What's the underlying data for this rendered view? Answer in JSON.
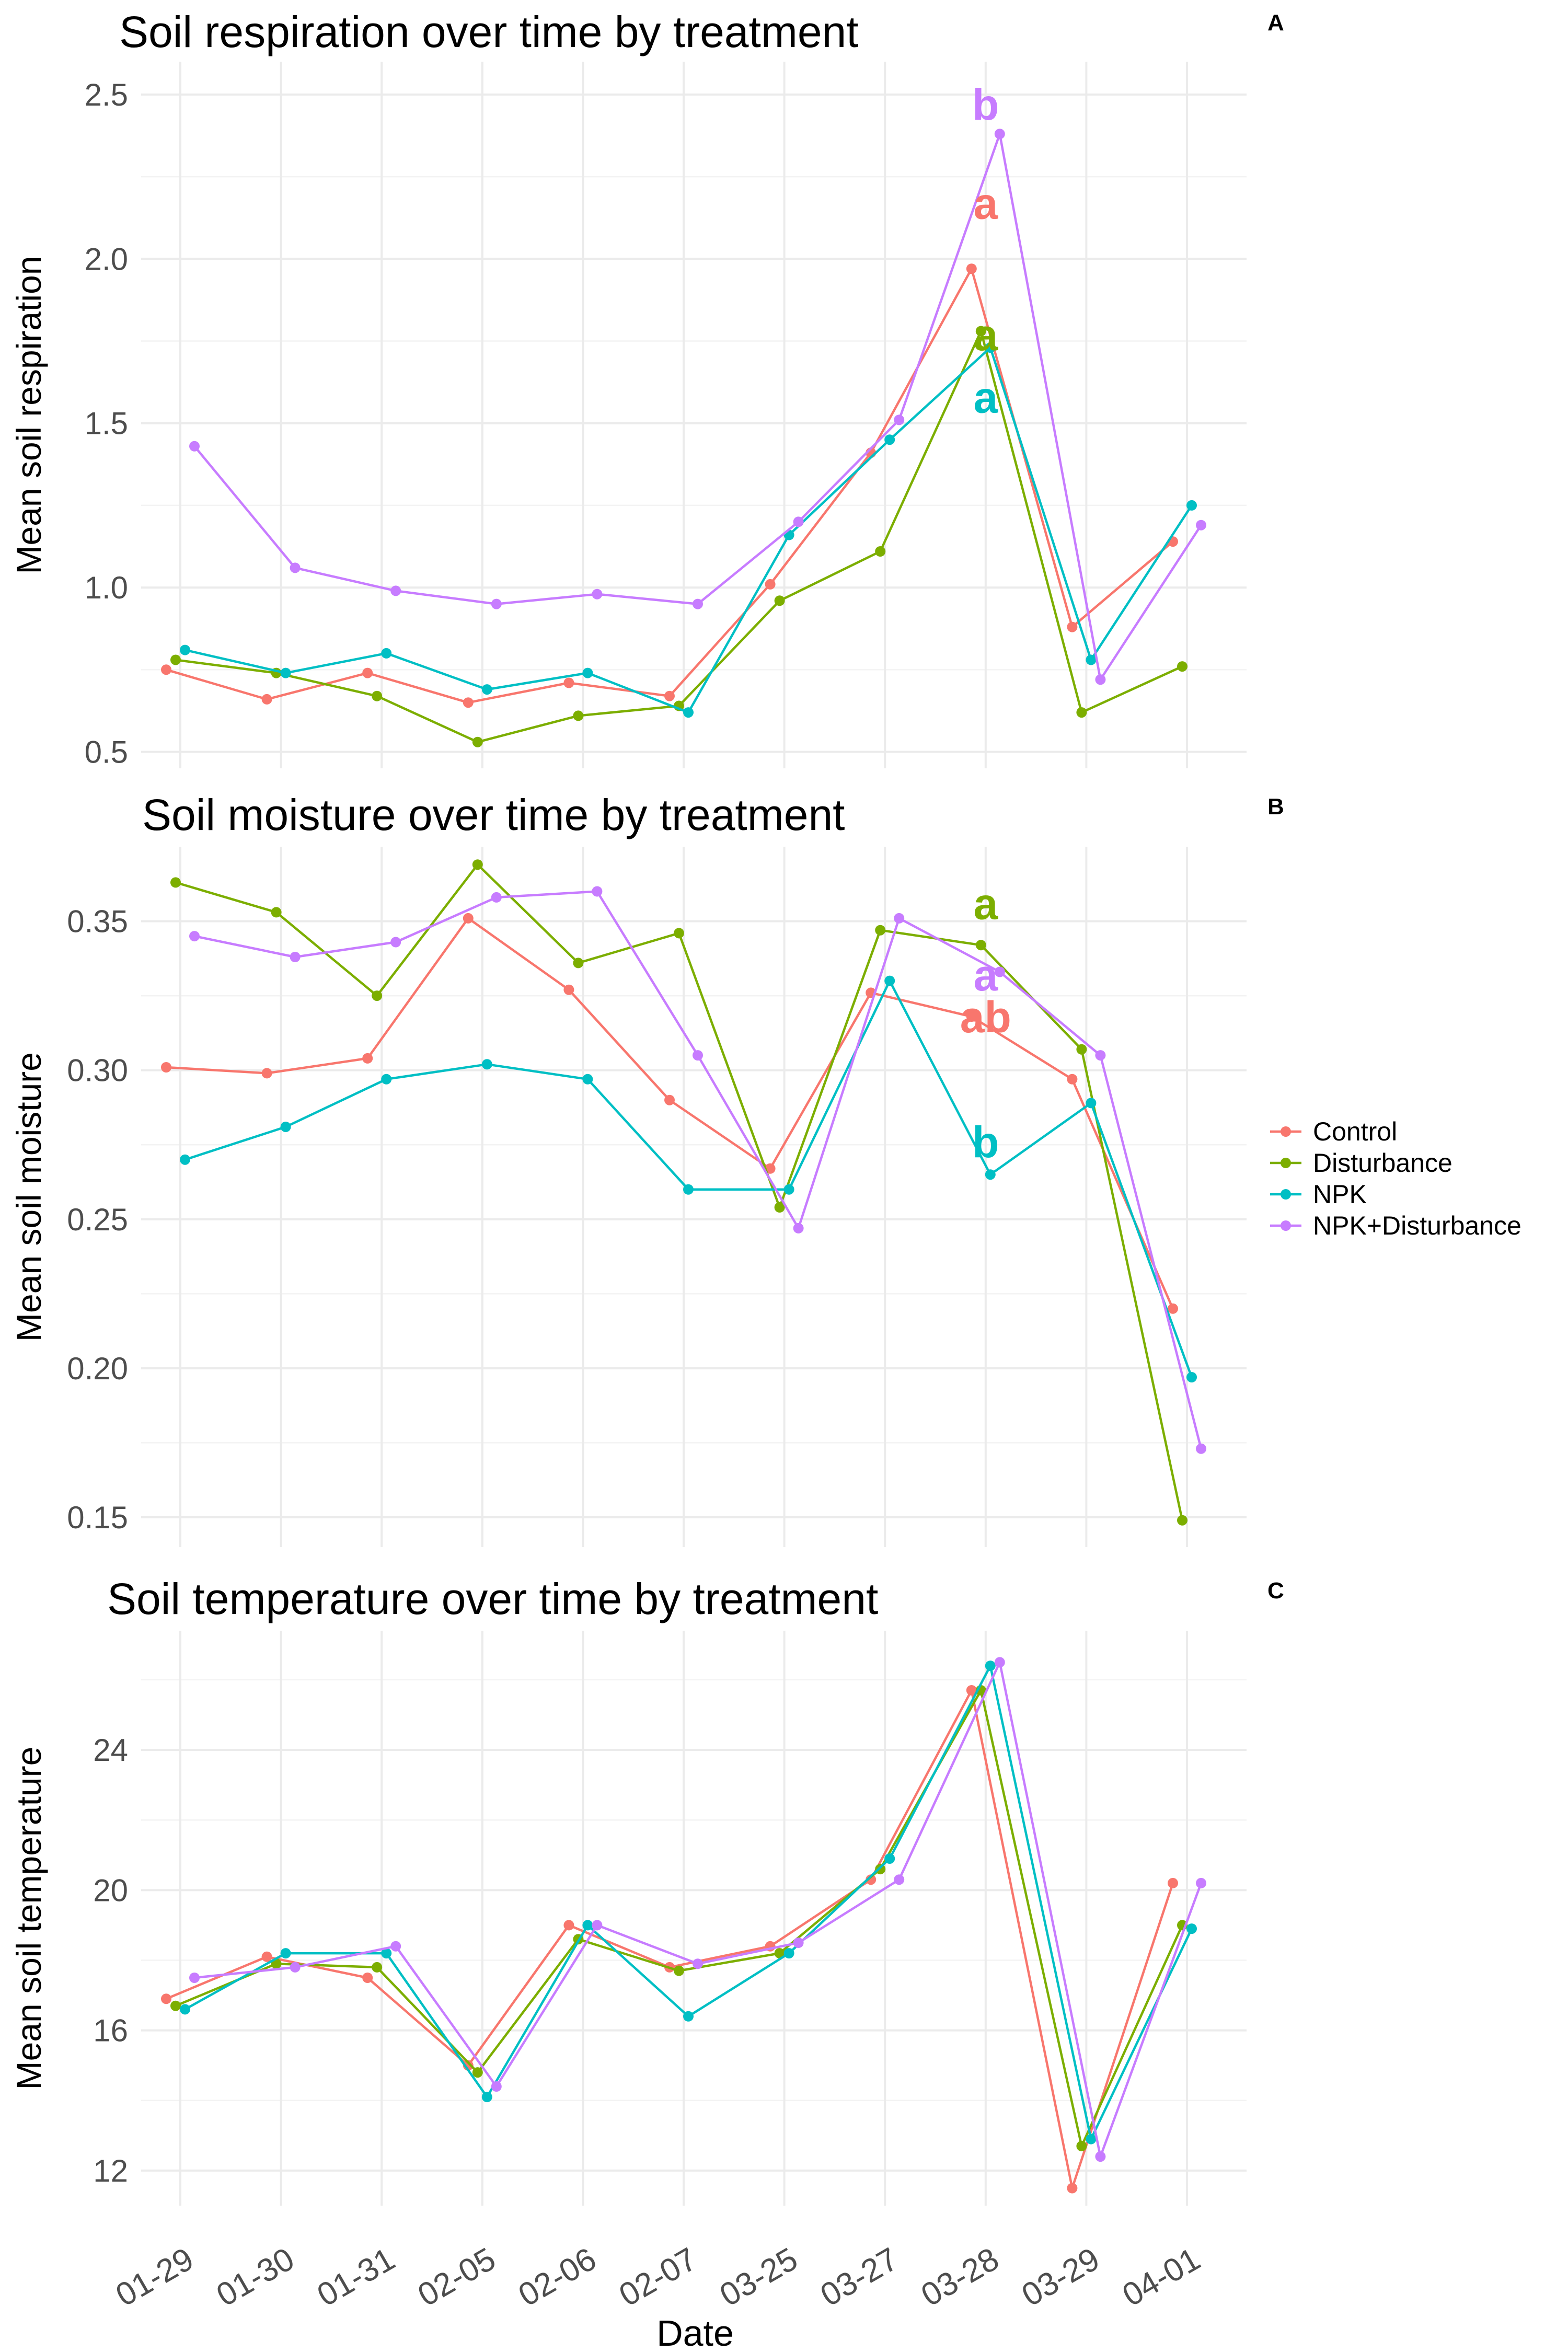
{
  "chart_data": [
    {
      "type": "line",
      "tag": "A",
      "title": "Soil respiration over time by treatment",
      "ylabel": "Mean soil respiration",
      "xlabel": "",
      "ylim": [
        0.45,
        2.6
      ],
      "yticks": [
        0.5,
        1.0,
        1.5,
        2.0,
        2.5
      ],
      "ytick_labels": [
        "0.5",
        "1.0",
        "1.5",
        "2.0",
        "2.5"
      ],
      "categories": [
        "01-29",
        "01-30",
        "01-31",
        "02-05",
        "02-06",
        "02-07",
        "03-25",
        "03-27",
        "03-28",
        "03-29",
        "04-01"
      ],
      "series": [
        {
          "name": "Control",
          "values": [
            0.75,
            0.66,
            0.74,
            0.65,
            0.71,
            0.67,
            1.01,
            1.41,
            1.97,
            0.88,
            1.14
          ]
        },
        {
          "name": "Disturbance",
          "values": [
            0.78,
            0.74,
            0.67,
            0.53,
            0.61,
            0.64,
            0.96,
            1.11,
            1.78,
            0.62,
            0.76
          ]
        },
        {
          "name": "NPK",
          "values": [
            0.81,
            0.74,
            0.8,
            0.69,
            0.74,
            0.62,
            1.16,
            1.45,
            1.73,
            0.78,
            1.25
          ]
        },
        {
          "name": "NPK+Disturbance",
          "values": [
            1.43,
            1.06,
            0.99,
            0.95,
            0.98,
            0.95,
            1.2,
            1.51,
            2.38,
            0.72,
            1.19
          ]
        }
      ],
      "annotations": [
        {
          "text": "b",
          "series": "NPK+Disturbance",
          "x": "03-28",
          "y": 2.47
        },
        {
          "text": "a",
          "series": "Control",
          "x": "03-28",
          "y": 2.17
        },
        {
          "text": "a",
          "series": "Disturbance",
          "x": "03-28",
          "y": 1.77
        },
        {
          "text": "a",
          "series": "NPK",
          "x": "03-28",
          "y": 1.58
        }
      ]
    },
    {
      "type": "line",
      "tag": "B",
      "title": "Soil moisture over time by treatment",
      "ylabel": "Mean soil moisture",
      "xlabel": "",
      "ylim": [
        0.14,
        0.375
      ],
      "yticks": [
        0.15,
        0.2,
        0.25,
        0.3,
        0.35
      ],
      "ytick_labels": [
        "0.15",
        "0.20",
        "0.25",
        "0.30",
        "0.35"
      ],
      "categories": [
        "01-29",
        "01-30",
        "01-31",
        "02-05",
        "02-06",
        "02-07",
        "03-25",
        "03-27",
        "03-28",
        "03-29",
        "04-01"
      ],
      "series": [
        {
          "name": "Control",
          "values": [
            0.301,
            0.299,
            0.304,
            0.351,
            0.327,
            0.29,
            0.267,
            0.326,
            0.318,
            0.297,
            0.22
          ]
        },
        {
          "name": "Disturbance",
          "values": [
            0.363,
            0.353,
            0.325,
            0.369,
            0.336,
            0.346,
            0.254,
            0.347,
            0.342,
            0.307,
            0.149
          ]
        },
        {
          "name": "NPK",
          "values": [
            0.27,
            0.281,
            0.297,
            0.302,
            0.297,
            0.26,
            0.26,
            0.33,
            0.265,
            0.289,
            0.197
          ]
        },
        {
          "name": "NPK+Disturbance",
          "values": [
            0.345,
            0.338,
            0.343,
            0.358,
            0.36,
            0.305,
            0.247,
            0.351,
            0.333,
            0.305,
            0.173
          ]
        }
      ],
      "annotations": [
        {
          "text": "a",
          "series": "Disturbance",
          "x": "03-28",
          "y": 0.356
        },
        {
          "text": "a",
          "series": "NPK+Disturbance",
          "x": "03-28",
          "y": 0.332
        },
        {
          "text": "ab",
          "series": "Control",
          "x": "03-28",
          "y": 0.318
        },
        {
          "text": "b",
          "series": "NPK",
          "x": "03-28",
          "y": 0.276
        }
      ]
    },
    {
      "type": "line",
      "tag": "C",
      "title": "Soil temperature over time by treatment",
      "ylabel": "Mean soil temperature",
      "xlabel": "Date",
      "ylim": [
        11.0,
        27.4
      ],
      "yticks": [
        12,
        16,
        20,
        24
      ],
      "ytick_labels": [
        "12",
        "16",
        "20",
        "24"
      ],
      "categories": [
        "01-29",
        "01-30",
        "01-31",
        "02-05",
        "02-06",
        "02-07",
        "03-25",
        "03-27",
        "03-28",
        "03-29",
        "04-01"
      ],
      "series": [
        {
          "name": "Control",
          "values": [
            16.9,
            18.1,
            17.5,
            15.0,
            19.0,
            17.8,
            18.4,
            20.3,
            25.7,
            11.5,
            20.2
          ]
        },
        {
          "name": "Disturbance",
          "values": [
            16.7,
            17.9,
            17.8,
            14.8,
            18.6,
            17.7,
            18.2,
            20.6,
            25.7,
            12.7,
            19.0
          ]
        },
        {
          "name": "NPK",
          "values": [
            16.6,
            18.2,
            18.2,
            14.1,
            19.0,
            16.4,
            18.2,
            20.9,
            26.4,
            12.9,
            18.9
          ]
        },
        {
          "name": "NPK+Disturbance",
          "values": [
            17.5,
            17.8,
            18.4,
            14.4,
            19.0,
            17.9,
            18.5,
            20.3,
            26.5,
            12.4,
            20.2
          ]
        }
      ],
      "annotations": []
    }
  ],
  "legend": {
    "placement": "right",
    "entries": [
      {
        "name": "Control",
        "color": "#F8766D"
      },
      {
        "name": "Disturbance",
        "color": "#7CAE00"
      },
      {
        "name": "NPK",
        "color": "#00BFC4"
      },
      {
        "name": "NPK+Disturbance",
        "color": "#C77CFF"
      }
    ]
  },
  "colors": {
    "Control": "#F8766D",
    "Disturbance": "#7CAE00",
    "NPK": "#00BFC4",
    "NPK+Disturbance": "#C77CFF"
  }
}
